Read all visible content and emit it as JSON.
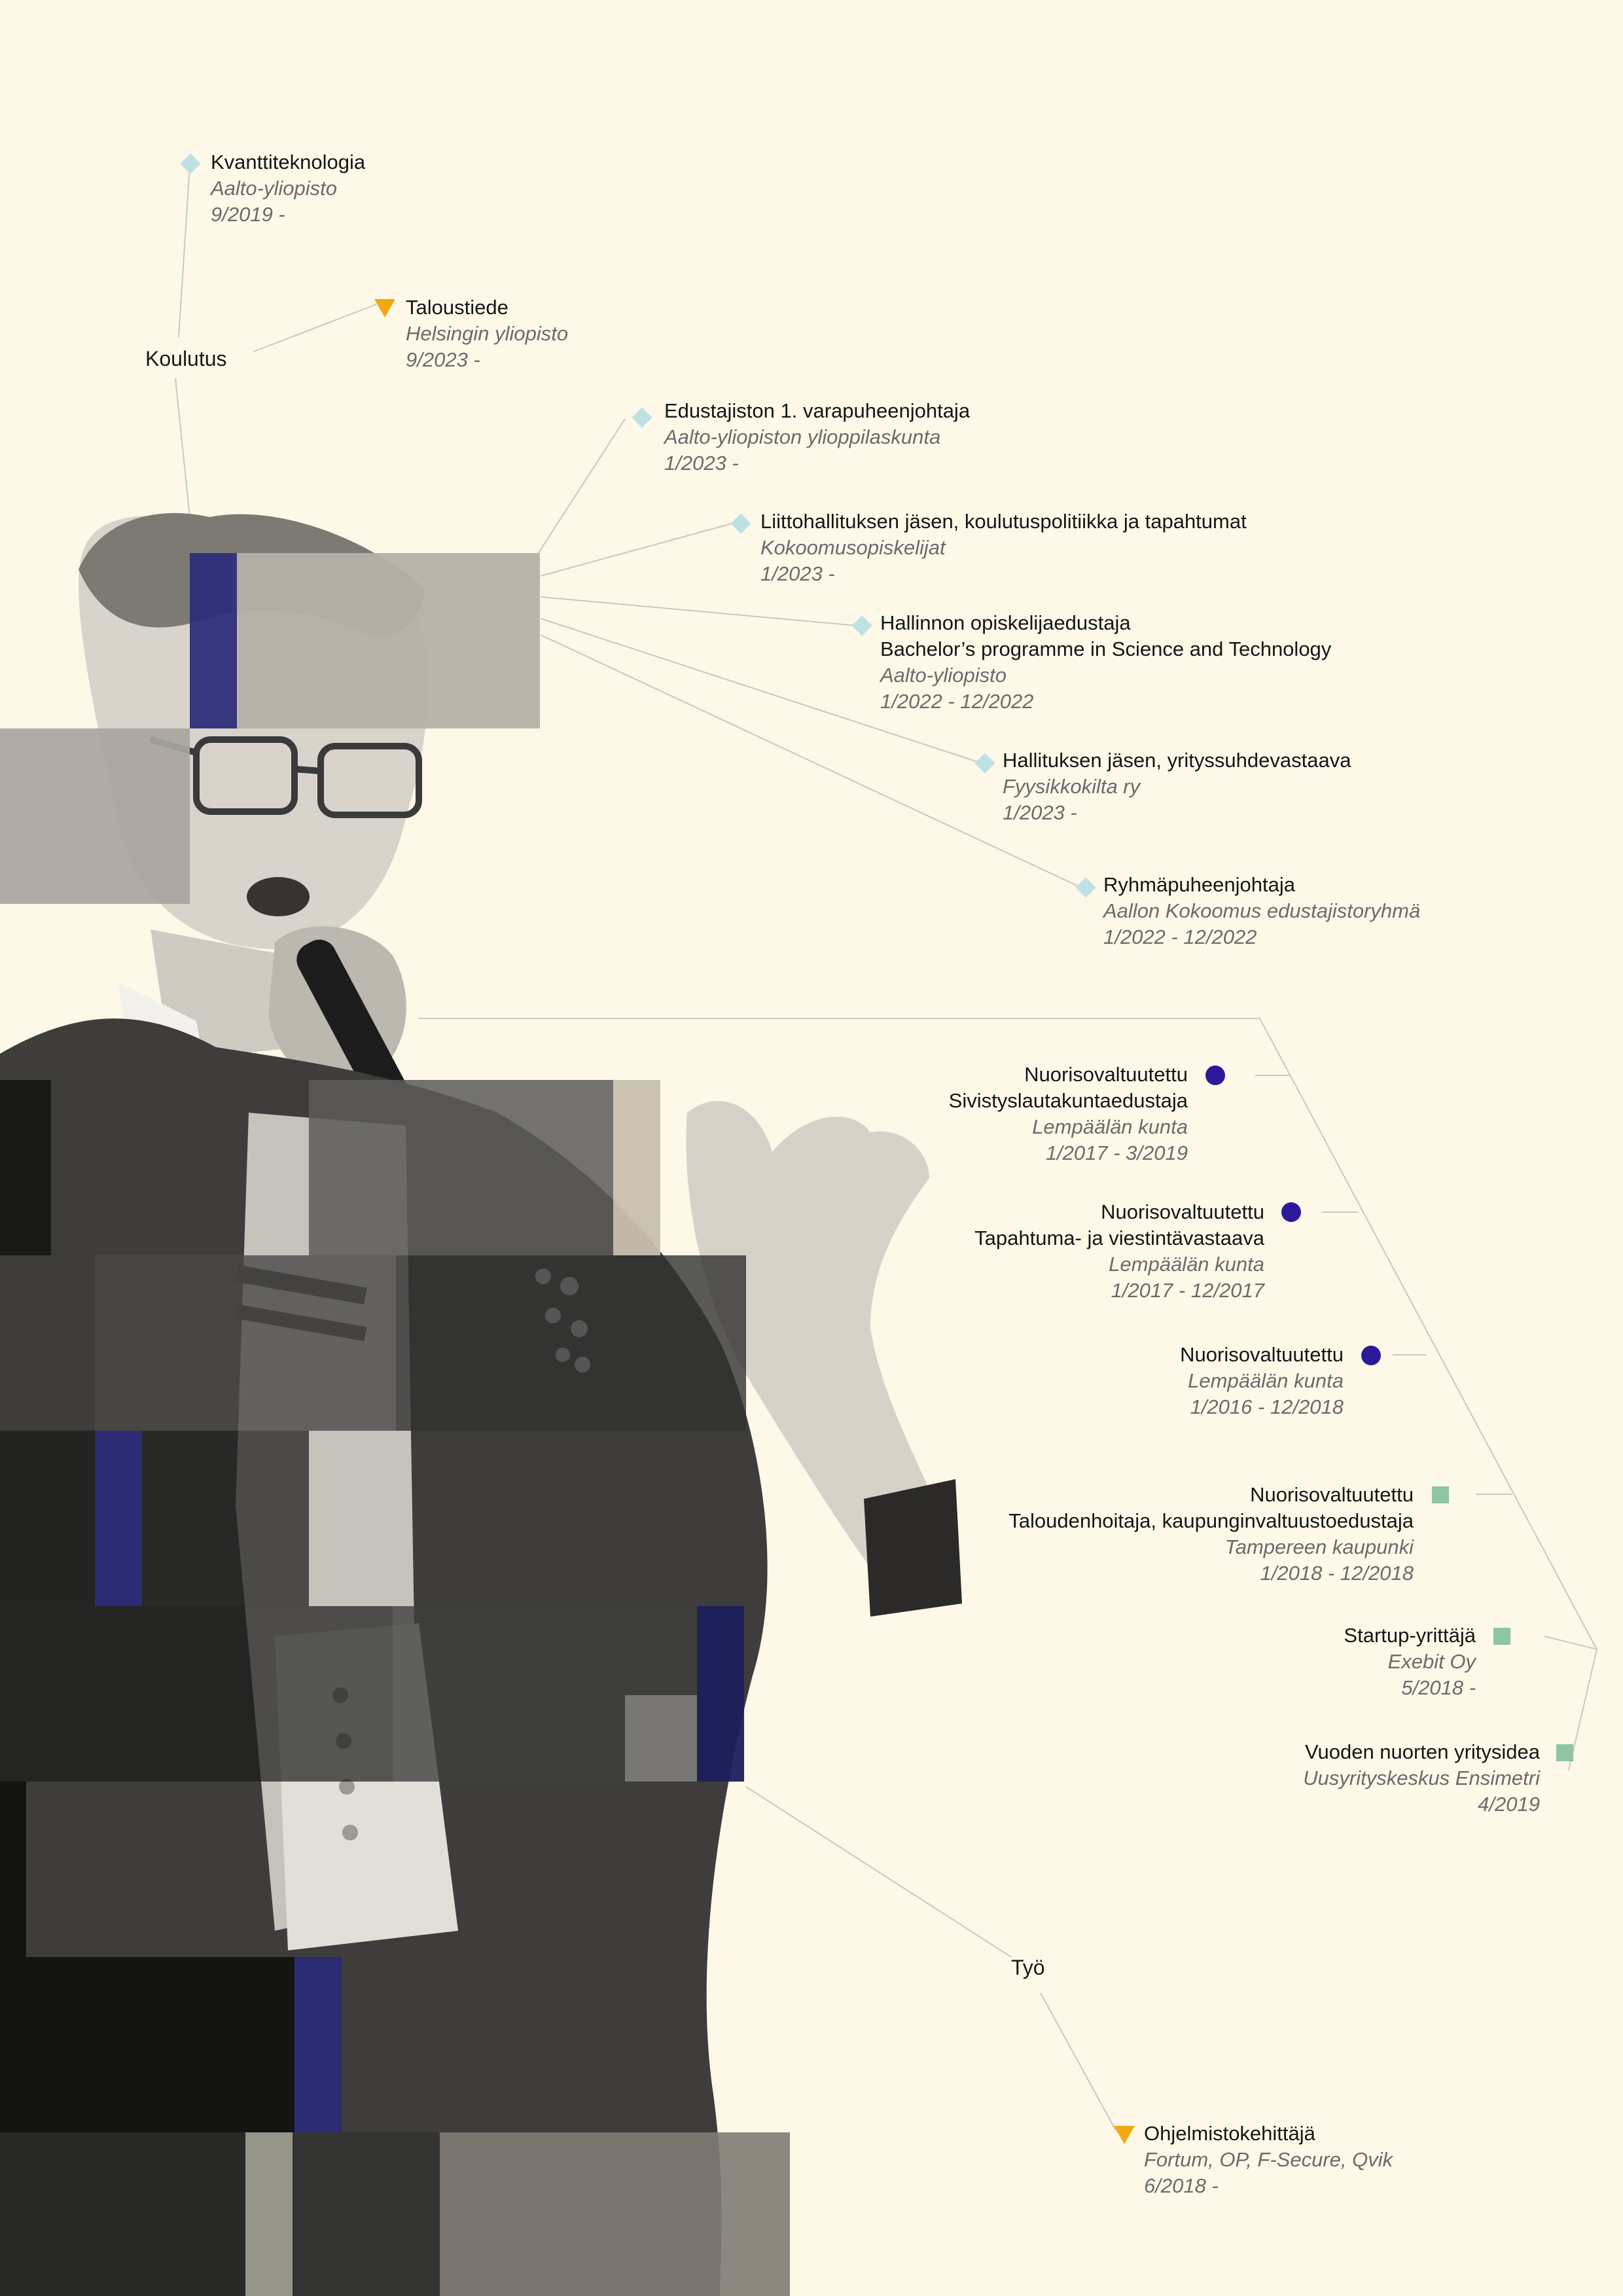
{
  "colors": {
    "background": "#fdf8e8",
    "education_marker": "#bfe1e4",
    "highlight_marker": "#f2a812",
    "municipal_marker": "#2d1a9a",
    "business_marker": "#8fc4a4",
    "accent_block": "#2a2a7a"
  },
  "hubs": {
    "education": "Koulutus",
    "work": "Työ"
  },
  "education": [
    {
      "title": "Kvanttiteknologia",
      "org": "Aalto-yliopisto",
      "dates": "9/2019 -"
    },
    {
      "title": "Taloustiede",
      "org": "Helsingin yliopisto",
      "dates": "9/2023 -"
    }
  ],
  "student_roles": [
    {
      "title": "Edustajiston 1. varapuheenjohtaja",
      "org": "Aalto-yliopiston ylioppilaskunta",
      "dates": "1/2023 -"
    },
    {
      "title": "Liittohallituksen jäsen, koulutuspolitiikka ja tapahtumat",
      "org": "Kokoomusopiskelijat",
      "dates": "1/2023 -"
    },
    {
      "title": "Hallinnon opiskelijaedustaja",
      "title2": "Bachelor’s programme in Science and Technology",
      "org": "Aalto-yliopisto",
      "dates": "1/2022 - 12/2022"
    },
    {
      "title": "Hallituksen jäsen, yrityssuhdevastaava",
      "org": "Fyysikkokilta ry",
      "dates": "1/2023 -"
    },
    {
      "title": "Ryhmäpuheenjohtaja",
      "org": "Aallon Kokoomus edustajistoryhmä",
      "dates": "1/2022 - 12/2022"
    }
  ],
  "municipal_roles": [
    {
      "title": "Nuorisovaltuutettu",
      "title2": "Sivistyslautakuntaedustaja",
      "org": "Lempäälän kunta",
      "dates": "1/2017 - 3/2019"
    },
    {
      "title": "Nuorisovaltuutettu",
      "title2": "Tapahtuma- ja viestintävastaava",
      "org": "Lempäälän kunta",
      "dates": "1/2017 - 12/2017"
    },
    {
      "title": "Nuorisovaltuutettu",
      "org": "Lempäälän kunta",
      "dates": "1/2016 - 12/2018"
    },
    {
      "title": "Nuorisovaltuutettu",
      "title2": "Taloudenhoitaja, kaupunginvaltuustoedustaja",
      "org": "Tampereen kaupunki",
      "dates": "1/2018 - 12/2018"
    }
  ],
  "business_roles": [
    {
      "title": "Startup-yrittäjä",
      "org": "Exebit Oy",
      "dates": "5/2018 -"
    },
    {
      "title": "Vuoden nuorten yritysidea",
      "org": "Uusyrityskeskus Ensimetri",
      "dates": "4/2019"
    }
  ],
  "work": [
    {
      "title": "Ohjelmistokehittäjä",
      "org": "Fortum, OP, F-Secure, Qvik",
      "dates": "6/2018 -"
    }
  ]
}
